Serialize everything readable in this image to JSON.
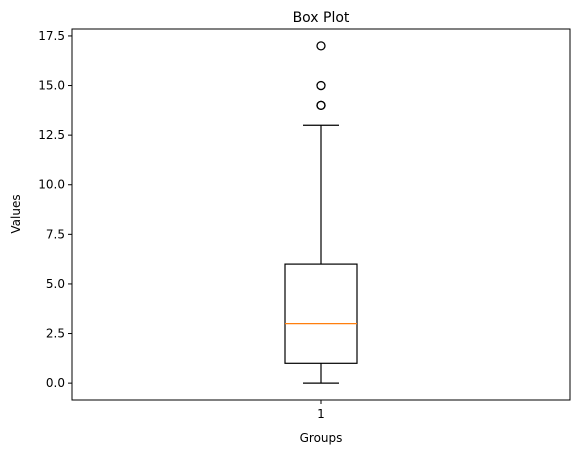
{
  "chart_data": {
    "type": "box",
    "title": "Box Plot",
    "xlabel": "Groups",
    "ylabel": "Values",
    "categories": [
      "1"
    ],
    "ylim": [
      -0.85,
      17.85
    ],
    "yticks": [
      "0.0",
      "2.5",
      "5.0",
      "7.5",
      "10.0",
      "12.5",
      "15.0",
      "17.5"
    ],
    "grid": false,
    "boxes": [
      {
        "category": "1",
        "whisker_low": 0,
        "q1": 1,
        "median": 3,
        "q3": 6,
        "whisker_high": 13,
        "outliers": [
          14,
          14,
          15,
          17
        ]
      }
    ],
    "colors": {
      "box": "#000000",
      "median": "#ff7f0e",
      "outlier": "#000000"
    }
  }
}
